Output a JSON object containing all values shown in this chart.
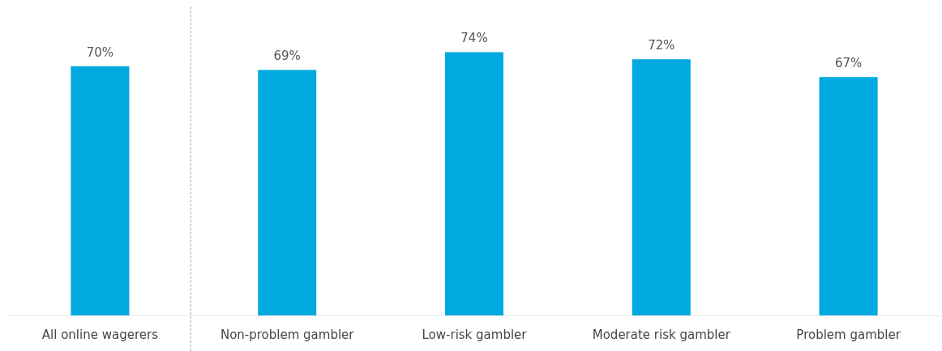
{
  "chart_data": {
    "type": "bar",
    "categories": [
      "All online wagerers",
      "Non-problem gambler",
      "Low-risk gambler",
      "Moderate risk gambler",
      "Problem gambler"
    ],
    "values": [
      70,
      69,
      74,
      72,
      67
    ],
    "value_labels": [
      "70%",
      "69%",
      "74%",
      "72%",
      "67%"
    ],
    "color": "#00a9e0",
    "grid": false
  }
}
